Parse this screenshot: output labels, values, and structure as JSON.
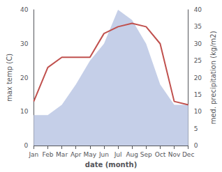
{
  "chart_data": {
    "type": "line",
    "categories": [
      "Jan",
      "Feb",
      "Mar",
      "Apr",
      "May",
      "Jun",
      "Jul",
      "Aug",
      "Sep",
      "Oct",
      "Nov",
      "Dec"
    ],
    "series": [
      {
        "type": "area",
        "color": "#c5cfe8",
        "axis": "y2",
        "values": [
          9,
          9,
          12,
          18,
          25,
          30,
          40,
          37,
          30,
          18,
          12,
          12
        ]
      },
      {
        "type": "line",
        "color": "#c0504d",
        "values": [
          13,
          23,
          26,
          26,
          26,
          33,
          35,
          36,
          35,
          30,
          13,
          12
        ]
      }
    ],
    "xlabel": "date (month)",
    "ylabel": "max temp (C)",
    "y2label": "med. precipitation (kg/m2)",
    "ylim": [
      0,
      40
    ],
    "yticks": [
      0,
      10,
      20,
      30,
      40
    ],
    "y2lim": [
      0,
      40
    ],
    "y2ticks": [
      0,
      5,
      10,
      15,
      20,
      25,
      30,
      35,
      40
    ],
    "grid": false
  }
}
